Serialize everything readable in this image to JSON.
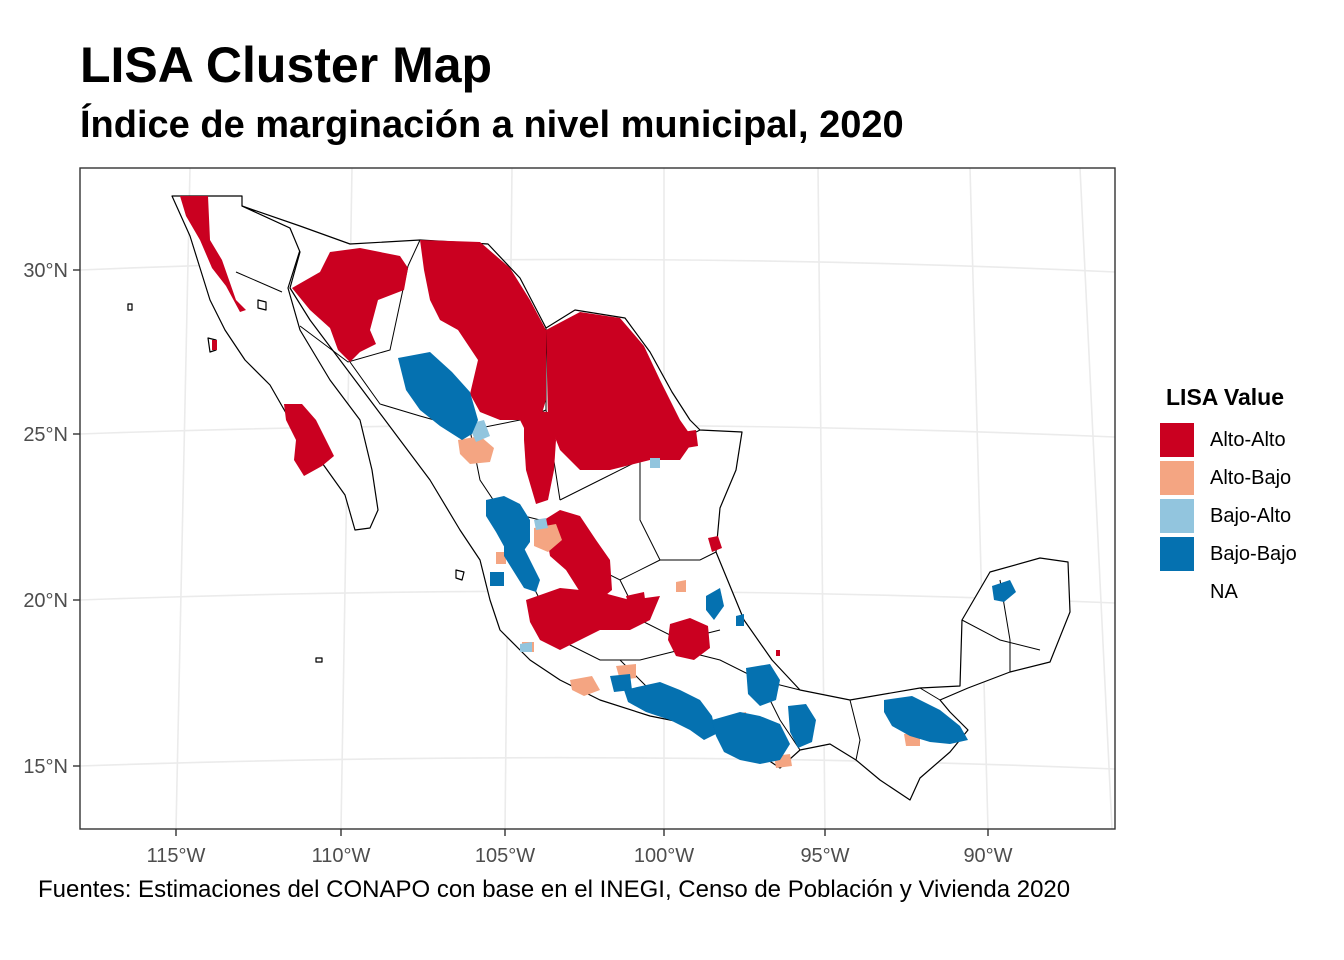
{
  "title": "LISA Cluster Map",
  "subtitle": "Índice de marginación a nivel municipal, 2020",
  "caption": "Fuentes: Estimaciones del CONAPO con base en el INEGI, Censo de Población y Vivienda 2020",
  "legend": {
    "title": "LISA Value",
    "items": [
      {
        "label": "Alto-Alto",
        "color": "#ca0020"
      },
      {
        "label": "Alto-Bajo",
        "color": "#f4a582"
      },
      {
        "label": "Bajo-Alto",
        "color": "#92c5de"
      },
      {
        "label": "Bajo-Bajo",
        "color": "#0571b0"
      },
      {
        "label": "NA",
        "color": "#ffffff"
      }
    ]
  },
  "axes": {
    "x_ticks": [
      "115°W",
      "110°W",
      "105°W",
      "100°W",
      "95°W",
      "90°W"
    ],
    "y_ticks": [
      "30°N",
      "25°N",
      "20°N",
      "15°N"
    ]
  },
  "colors": {
    "outline": "#000000",
    "graticule": "#ebebeb",
    "panel_border": "#333333"
  }
}
